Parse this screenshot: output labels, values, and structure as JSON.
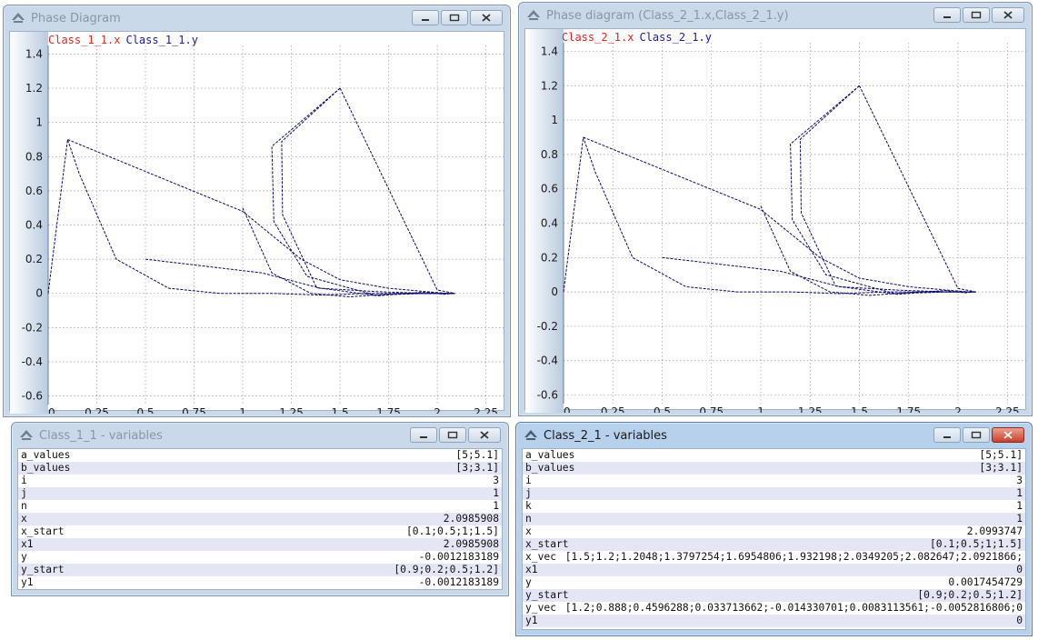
{
  "windows": {
    "plot1": {
      "title": "Phase Diagram",
      "legend_x": "Class_1_1.x",
      "legend_y": "Class_1_1.y"
    },
    "plot2": {
      "title": "Phase diagram (Class_2_1.x,Class_2_1.y)",
      "legend_x": "Class_2_1.x",
      "legend_y": "Class_2_1.y"
    },
    "vars1": {
      "title": "Class_1_1 - variables",
      "rows": [
        {
          "name": "a_values",
          "value": "[5;5.1]"
        },
        {
          "name": "b_values",
          "value": "[3;3.1]"
        },
        {
          "name": "i",
          "value": "3"
        },
        {
          "name": "j",
          "value": "1"
        },
        {
          "name": "n",
          "value": "1"
        },
        {
          "name": "x",
          "value": "2.0985908"
        },
        {
          "name": "x_start",
          "value": "[0.1;0.5;1;1.5]"
        },
        {
          "name": "x1",
          "value": "2.0985908"
        },
        {
          "name": "y",
          "value": "-0.0012183189"
        },
        {
          "name": "y_start",
          "value": "[0.9;0.2;0.5;1.2]"
        },
        {
          "name": "y1",
          "value": "-0.0012183189"
        }
      ]
    },
    "vars2": {
      "title": "Class_2_1 - variables",
      "rows": [
        {
          "name": "a_values",
          "value": "[5;5.1]"
        },
        {
          "name": "b_values",
          "value": "[3;3.1]"
        },
        {
          "name": "i",
          "value": "3"
        },
        {
          "name": "j",
          "value": "1"
        },
        {
          "name": "k",
          "value": "1"
        },
        {
          "name": "n",
          "value": "1"
        },
        {
          "name": "x",
          "value": "2.0993747"
        },
        {
          "name": "x_start",
          "value": "[0.1;0.5;1;1.5]"
        },
        {
          "name": "x_vec",
          "value": "[1.5;1.2;1.2048;1.3797254;1.6954806;1.932198;2.0349205;2.082647;2.0921866;"
        },
        {
          "name": "x1",
          "value": "0"
        },
        {
          "name": "y",
          "value": "0.0017454729"
        },
        {
          "name": "y_start",
          "value": "[0.9;0.2;0.5;1.2]"
        },
        {
          "name": "y_vec",
          "value": "[1.2;0.888;0.4596288;0.033713662;-0.014330701;0.0083113561;-0.0052816806;0"
        },
        {
          "name": "y1",
          "value": "0"
        }
      ]
    }
  },
  "chart_data": [
    {
      "type": "line",
      "title": "",
      "series": [
        {
          "x": [
            0.0,
            0.1,
            0.16,
            0.35,
            0.62,
            0.88,
            1.15,
            1.4,
            1.65,
            1.88,
            2.02,
            2.09
          ],
          "y": [
            0.0,
            0.9,
            0.7,
            0.2,
            0.03,
            0.0,
            0.0,
            -0.01,
            0.0,
            0.0,
            0.0,
            0.0
          ]
        },
        {
          "x": [
            0.1,
            1.0,
            1.3,
            1.5,
            1.75,
            1.95,
            2.05,
            2.09
          ],
          "y": [
            0.9,
            0.48,
            0.2,
            0.08,
            0.03,
            0.01,
            0.0,
            0.0
          ]
        },
        {
          "x": [
            0.5,
            1.1,
            1.4,
            1.7,
            1.95,
            2.07,
            2.09
          ],
          "y": [
            0.2,
            0.12,
            0.03,
            0.01,
            0.0,
            0.0,
            0.0
          ]
        },
        {
          "x": [
            1.0,
            1.15,
            1.35,
            1.55,
            1.8,
            2.0,
            2.09
          ],
          "y": [
            0.5,
            0.12,
            0.0,
            -0.02,
            0.0,
            0.0,
            0.0
          ]
        },
        {
          "x": [
            1.5,
            1.2,
            1.2048,
            1.3797254,
            1.6954806,
            1.932198,
            2.0349205,
            2.082647,
            2.0921866
          ],
          "y": [
            1.2,
            0.888,
            0.4596288,
            0.033713662,
            -0.014330701,
            0.0083113561,
            -0.0052816806,
            0.0,
            0.0
          ]
        },
        {
          "x": [
            1.5,
            1.15,
            1.16,
            1.33,
            1.68,
            1.95,
            2.05,
            2.09
          ],
          "y": [
            1.2,
            0.86,
            0.42,
            0.1,
            -0.01,
            0.0,
            0.0,
            0.0
          ]
        },
        {
          "x": [
            1.5,
            2.0,
            2.09
          ],
          "y": [
            1.2,
            0.02,
            0.0
          ]
        }
      ],
      "xlim": [
        0,
        2.35
      ],
      "ylim": [
        -0.65,
        1.45
      ],
      "xticks": [
        "0",
        "0.25",
        "0.5",
        "0.75",
        "1",
        "1.25",
        "1.5",
        "1.75",
        "2",
        "2.25"
      ],
      "yticks": [
        "-0.6",
        "-0.4",
        "-0.2",
        "0",
        "0.2",
        "0.4",
        "0.6",
        "0.8",
        "1",
        "1.2",
        "1.4"
      ],
      "legend": [
        "Class_1_1.x",
        "Class_1_1.y"
      ],
      "grid": true
    },
    {
      "type": "line",
      "title": "",
      "series": [
        {
          "x": [
            0.0,
            0.1,
            0.16,
            0.35,
            0.62,
            0.88,
            1.15,
            1.4,
            1.65,
            1.88,
            2.02,
            2.09
          ],
          "y": [
            0.0,
            0.9,
            0.7,
            0.2,
            0.03,
            0.0,
            0.0,
            -0.01,
            0.0,
            0.0,
            0.0,
            0.0
          ]
        },
        {
          "x": [
            0.1,
            1.0,
            1.3,
            1.5,
            1.75,
            1.95,
            2.05,
            2.09
          ],
          "y": [
            0.9,
            0.48,
            0.2,
            0.08,
            0.03,
            0.01,
            0.0,
            0.0
          ]
        },
        {
          "x": [
            0.5,
            1.1,
            1.4,
            1.7,
            1.95,
            2.07,
            2.09
          ],
          "y": [
            0.2,
            0.12,
            0.03,
            0.01,
            0.0,
            0.0,
            0.0
          ]
        },
        {
          "x": [
            1.0,
            1.15,
            1.35,
            1.55,
            1.8,
            2.0,
            2.09
          ],
          "y": [
            0.5,
            0.12,
            0.0,
            -0.02,
            0.0,
            0.0,
            0.0
          ]
        },
        {
          "x": [
            1.5,
            1.2,
            1.2048,
            1.3797254,
            1.6954806,
            1.932198,
            2.0349205,
            2.082647,
            2.0921866
          ],
          "y": [
            1.2,
            0.888,
            0.4596288,
            0.033713662,
            -0.014330701,
            0.0083113561,
            -0.0052816806,
            0.0,
            0.0
          ]
        },
        {
          "x": [
            1.5,
            1.15,
            1.16,
            1.33,
            1.68,
            1.95,
            2.05,
            2.09
          ],
          "y": [
            1.2,
            0.86,
            0.42,
            0.1,
            -0.01,
            0.0,
            0.0,
            0.0
          ]
        },
        {
          "x": [
            1.5,
            2.0,
            2.09
          ],
          "y": [
            1.2,
            0.02,
            0.0
          ]
        }
      ],
      "xlim": [
        0,
        2.35
      ],
      "ylim": [
        -0.65,
        1.45
      ],
      "xticks": [
        "0",
        "0.25",
        "0.5",
        "0.75",
        "1",
        "1.25",
        "1.5",
        "1.75",
        "2",
        "2.25"
      ],
      "yticks": [
        "-0.6",
        "-0.4",
        "-0.2",
        "0",
        "0.2",
        "0.4",
        "0.6",
        "0.8",
        "1",
        "1.2",
        "1.4"
      ],
      "legend": [
        "Class_2_1.x",
        "Class_2_1.y"
      ],
      "grid": true
    }
  ],
  "colors": {
    "trajectory": "#0b0b66",
    "legend_x": "#e0251f",
    "legend_y": "#1a1a9e",
    "grid": "#9a9a9a"
  },
  "icons": {
    "app": "modelica-hat-icon",
    "minimize": "minimize-icon",
    "maximize": "maximize-icon",
    "close": "close-icon"
  }
}
